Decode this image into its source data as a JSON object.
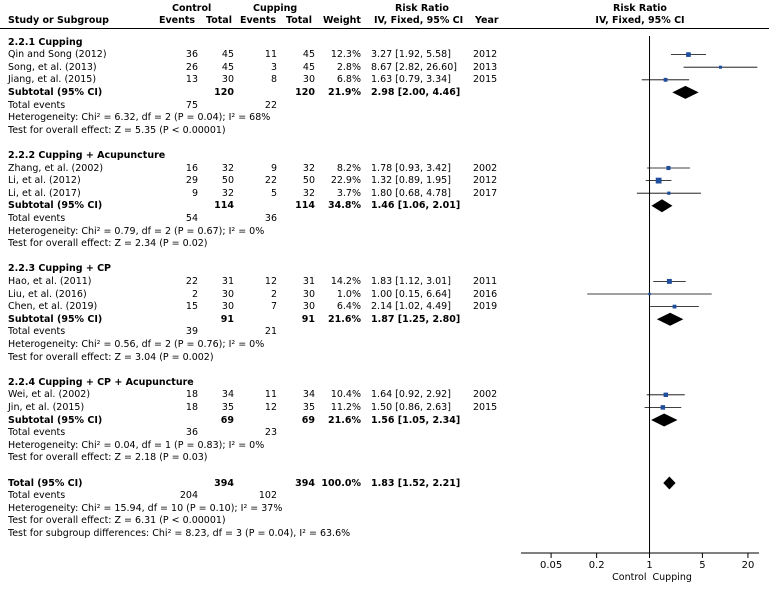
{
  "headers": {
    "study": "Study or Subgroup",
    "control": "Control",
    "cupping": "Cupping",
    "events": "Events",
    "total": "Total",
    "weight": "Weight",
    "rr_title": "Risk Ratio",
    "rr_method": "IV, Fixed, 95% CI",
    "year": "Year",
    "plot_title": "Risk Ratio",
    "plot_method": "IV, Fixed, 95% CI"
  },
  "chart_data": {
    "type": "forest",
    "scale": "log",
    "xlim": [
      0.02,
      28
    ],
    "ticks": [
      {
        "value": 0.05,
        "label": "0.05"
      },
      {
        "value": 0.2,
        "label": "0.2"
      },
      {
        "value": 1,
        "label": "1"
      },
      {
        "value": 5,
        "label": "5"
      },
      {
        "value": 20,
        "label": "20"
      }
    ],
    "xlabel_left": "Control",
    "xlabel_right": "Cupping",
    "overall": {
      "rr": 1.83,
      "lo": 1.52,
      "hi": 2.21
    }
  },
  "rows": [
    {
      "type": "group",
      "label": "2.2.1 Cupping"
    },
    {
      "type": "study",
      "label": "Qin and Song (2012)",
      "ce": "36",
      "ct": "45",
      "ue": "11",
      "ut": "45",
      "w": "12.3%",
      "rr": "3.27 [1.92, 5.58]",
      "year": "2012",
      "est": 3.27,
      "lo": 1.92,
      "hi": 5.58,
      "wt": 12.3
    },
    {
      "type": "study",
      "label": "Song, et al. (2013)",
      "ce": "26",
      "ct": "45",
      "ue": "3",
      "ut": "45",
      "w": "2.8%",
      "rr": "8.67 [2.82, 26.60]",
      "year": "2013",
      "est": 8.67,
      "lo": 2.82,
      "hi": 26.6,
      "wt": 2.8
    },
    {
      "type": "study",
      "label": "Jiang, et al. (2015)",
      "ce": "13",
      "ct": "30",
      "ue": "8",
      "ut": "30",
      "w": "6.8%",
      "rr": "1.63 [0.79, 3.34]",
      "year": "2015",
      "est": 1.63,
      "lo": 0.79,
      "hi": 3.34,
      "wt": 6.8
    },
    {
      "type": "subtotal",
      "label": "Subtotal (95% CI)",
      "ce": "",
      "ct": "120",
      "ue": "",
      "ut": "120",
      "w": "21.9%",
      "rr": "2.98 [2.00, 4.46]",
      "year": "",
      "est": 2.98,
      "lo": 2.0,
      "hi": 4.46
    },
    {
      "type": "events",
      "label": "Total events",
      "ce": "75",
      "ue": "22"
    },
    {
      "type": "text",
      "label": "Heterogeneity: Chi² = 6.32, df = 2 (P = 0.04); I² = 68%"
    },
    {
      "type": "text",
      "label": "Test for overall effect: Z = 5.35 (P < 0.00001)"
    },
    {
      "type": "blank"
    },
    {
      "type": "group",
      "label": "2.2.2 Cupping + Acupuncture"
    },
    {
      "type": "study",
      "label": "Zhang, et al. (2002)",
      "ce": "16",
      "ct": "32",
      "ue": "9",
      "ut": "32",
      "w": "8.2%",
      "rr": "1.78 [0.93, 3.42]",
      "year": "2002",
      "est": 1.78,
      "lo": 0.93,
      "hi": 3.42,
      "wt": 8.2
    },
    {
      "type": "study",
      "label": "Li, et al.  (2012)",
      "ce": "29",
      "ct": "50",
      "ue": "22",
      "ut": "50",
      "w": "22.9%",
      "rr": "1.32 [0.89, 1.95]",
      "year": "2012",
      "est": 1.32,
      "lo": 0.89,
      "hi": 1.95,
      "wt": 22.9
    },
    {
      "type": "study",
      "label": "Li, et al. (2017)",
      "ce": "9",
      "ct": "32",
      "ue": "5",
      "ut": "32",
      "w": "3.7%",
      "rr": "1.80 [0.68, 4.78]",
      "year": "2017",
      "est": 1.8,
      "lo": 0.68,
      "hi": 4.78,
      "wt": 3.7
    },
    {
      "type": "subtotal",
      "label": "Subtotal (95% CI)",
      "ce": "",
      "ct": "114",
      "ue": "",
      "ut": "114",
      "w": "34.8%",
      "rr": "1.46 [1.06, 2.01]",
      "year": "",
      "est": 1.46,
      "lo": 1.06,
      "hi": 2.01
    },
    {
      "type": "events",
      "label": "Total events",
      "ce": "54",
      "ue": "36"
    },
    {
      "type": "text",
      "label": "Heterogeneity: Chi² = 0.79, df = 2 (P = 0.67); I² = 0%"
    },
    {
      "type": "text",
      "label": "Test for overall effect: Z = 2.34 (P = 0.02)"
    },
    {
      "type": "blank"
    },
    {
      "type": "group",
      "label": "2.2.3 Cupping + CP"
    },
    {
      "type": "study",
      "label": "Hao, et al. (2011)",
      "ce": "22",
      "ct": "31",
      "ue": "12",
      "ut": "31",
      "w": "14.2%",
      "rr": "1.83 [1.12, 3.01]",
      "year": "2011",
      "est": 1.83,
      "lo": 1.12,
      "hi": 3.01,
      "wt": 14.2
    },
    {
      "type": "study",
      "label": "Liu, et al. (2016)",
      "ce": "2",
      "ct": "30",
      "ue": "2",
      "ut": "30",
      "w": "1.0%",
      "rr": "1.00 [0.15, 6.64]",
      "year": "2016",
      "est": 1.0,
      "lo": 0.15,
      "hi": 6.64,
      "wt": 1.0
    },
    {
      "type": "study",
      "label": "Chen, et al. (2019)",
      "ce": "15",
      "ct": "30",
      "ue": "7",
      "ut": "30",
      "w": "6.4%",
      "rr": "2.14 [1.02, 4.49]",
      "year": "2019",
      "est": 2.14,
      "lo": 1.02,
      "hi": 4.49,
      "wt": 6.4
    },
    {
      "type": "subtotal",
      "label": "Subtotal (95% CI)",
      "ce": "",
      "ct": "91",
      "ue": "",
      "ut": "91",
      "w": "21.6%",
      "rr": "1.87 [1.25, 2.80]",
      "year": "",
      "est": 1.87,
      "lo": 1.25,
      "hi": 2.8
    },
    {
      "type": "events",
      "label": "Total events",
      "ce": "39",
      "ue": "21"
    },
    {
      "type": "text",
      "label": "Heterogeneity: Chi² = 0.56, df = 2 (P = 0.76); I² = 0%"
    },
    {
      "type": "text",
      "label": "Test for overall effect: Z = 3.04 (P = 0.002)"
    },
    {
      "type": "blank"
    },
    {
      "type": "group",
      "label": "2.2.4 Cupping + CP + Acupuncture"
    },
    {
      "type": "study",
      "label": "Wei, et al. (2002)",
      "ce": "18",
      "ct": "34",
      "ue": "11",
      "ut": "34",
      "w": "10.4%",
      "rr": "1.64 [0.92, 2.92]",
      "year": "2002",
      "est": 1.64,
      "lo": 0.92,
      "hi": 2.92,
      "wt": 10.4
    },
    {
      "type": "study",
      "label": "Jin, et al. (2015)",
      "ce": "18",
      "ct": "35",
      "ue": "12",
      "ut": "35",
      "w": "11.2%",
      "rr": "1.50 [0.86, 2.63]",
      "year": "2015",
      "est": 1.5,
      "lo": 0.86,
      "hi": 2.63,
      "wt": 11.2
    },
    {
      "type": "subtotal",
      "label": "Subtotal (95% CI)",
      "ce": "",
      "ct": "69",
      "ue": "",
      "ut": "69",
      "w": "21.6%",
      "rr": "1.56 [1.05, 2.34]",
      "year": "",
      "est": 1.56,
      "lo": 1.05,
      "hi": 2.34
    },
    {
      "type": "events",
      "label": "Total events",
      "ce": "36",
      "ue": "23"
    },
    {
      "type": "text",
      "label": "Heterogeneity: Chi² = 0.04, df = 1 (P = 0.83); I² = 0%"
    },
    {
      "type": "text",
      "label": "Test for overall effect: Z = 2.18 (P = 0.03)"
    },
    {
      "type": "blank"
    },
    {
      "type": "total",
      "label": "Total (95% CI)",
      "ce": "",
      "ct": "394",
      "ue": "",
      "ut": "394",
      "w": "100.0%",
      "rr": "1.83 [1.52, 2.21]",
      "year": "",
      "est": 1.83,
      "lo": 1.52,
      "hi": 2.21
    },
    {
      "type": "events",
      "label": "Total events",
      "ce": "204",
      "ue": "102"
    },
    {
      "type": "text",
      "label": "Heterogeneity: Chi² = 15.94, df = 10 (P = 0.10); I² = 37%"
    },
    {
      "type": "text",
      "label": "Test for overall effect: Z = 6.31 (P < 0.00001)"
    },
    {
      "type": "text",
      "label": "Test for subgroup differences: Chi² = 8.23, df = 3 (P = 0.04), I² = 63.6%"
    }
  ]
}
